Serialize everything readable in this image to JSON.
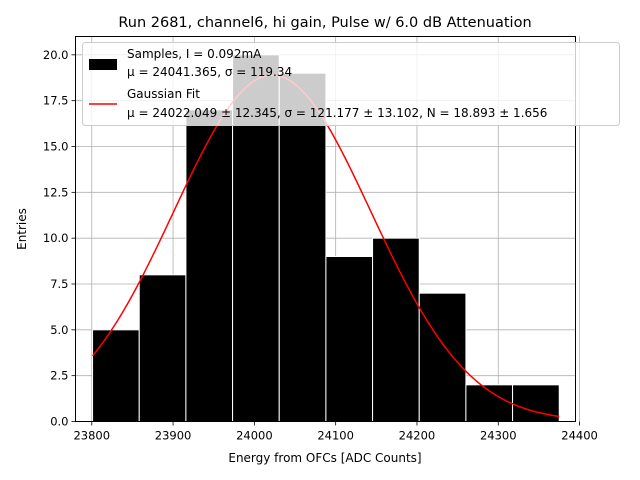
{
  "chart_data": {
    "type": "bar",
    "title": "Run 2681, channel6, hi gain, Pulse w/ 6.0 dB Attenuation",
    "xlabel": "Energy from OFCs [ADC Counts]",
    "ylabel": "Entries",
    "xlim": [
      23780,
      24395
    ],
    "ylim": [
      0,
      21
    ],
    "grid": true,
    "legend_position": "top-right",
    "xticks": [
      23800,
      23900,
      24000,
      24100,
      24200,
      24300,
      24400
    ],
    "yticks": [
      0.0,
      2.5,
      5.0,
      7.5,
      10.0,
      12.5,
      15.0,
      17.5,
      20.0
    ],
    "xtick_labels": [
      "23800",
      "23900",
      "24000",
      "24100",
      "24200",
      "24300",
      "24400"
    ],
    "ytick_labels": [
      "0.0",
      "2.5",
      "5.0",
      "7.5",
      "10.0",
      "12.5",
      "15.0",
      "17.5",
      "20.0"
    ],
    "bin_edges": [
      23801,
      23858.4,
      23915.8,
      23973.2,
      24030.6,
      24088,
      24145.4,
      24202.8,
      24260.2,
      24317.6,
      24375
    ],
    "counts": [
      5,
      8,
      17,
      20,
      19,
      9,
      10,
      7,
      2,
      2
    ],
    "bar_color": "#000000",
    "bar_edge_color": "#ffffff",
    "fit": {
      "mu": 24022.049,
      "sigma": 121.177,
      "N": 18.893,
      "x_range": [
        23801,
        24375
      ],
      "color": "#ff0000"
    },
    "legend": [
      {
        "symbol": "patch",
        "line1": "Samples, I = 0.092mA",
        "line2": "μ = 24041.365, σ = 119.34"
      },
      {
        "symbol": "line",
        "line1": "Gaussian Fit",
        "line2": "μ = 24022.049 ± 12.345, σ = 121.177 ± 13.102, N = 18.893 ± 1.656"
      }
    ]
  }
}
